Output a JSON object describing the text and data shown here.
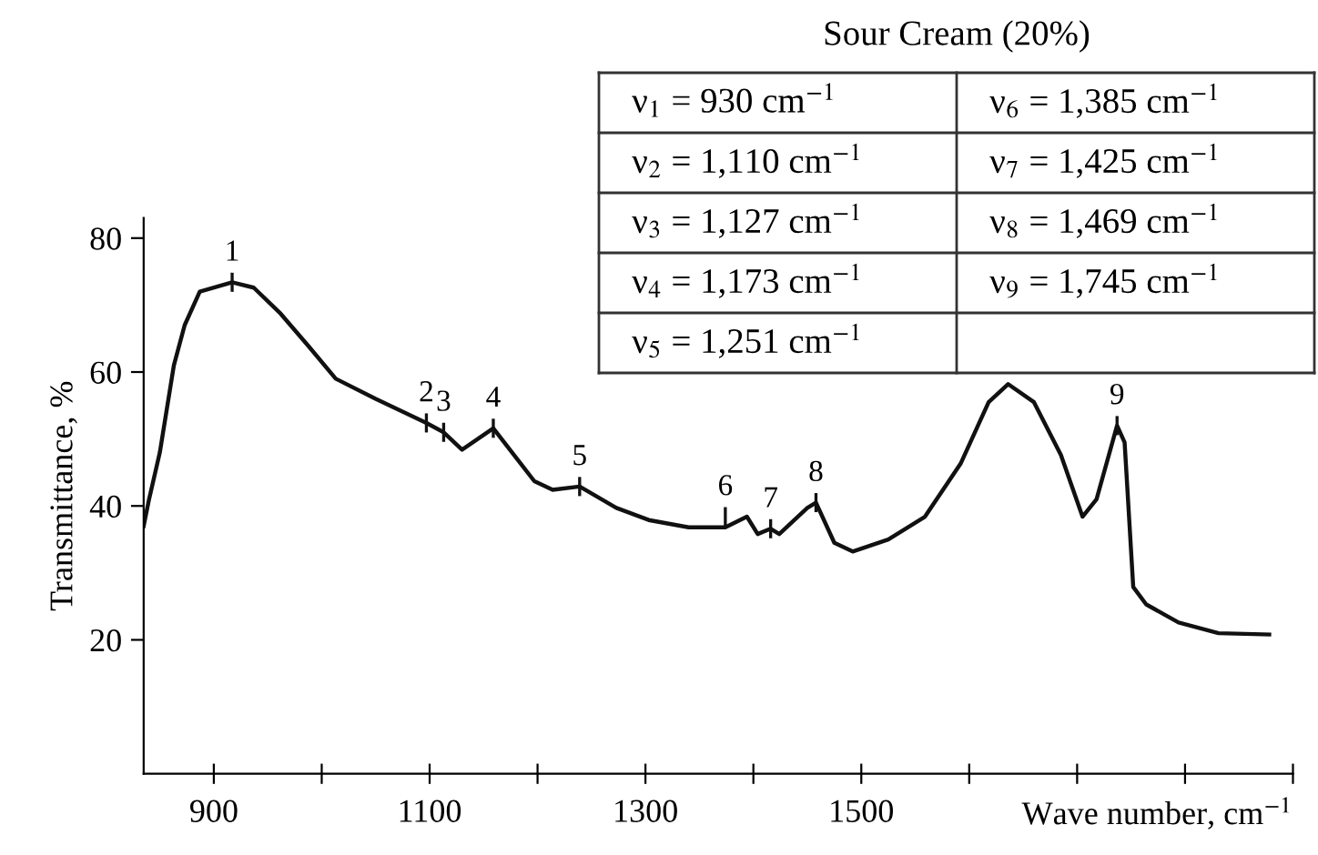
{
  "chart_data": {
    "type": "line",
    "title": "Sour Cream (20%)",
    "xlabel": "Wave number, cm$^{−1}$",
    "ylabel": "Transmittance, %",
    "x": [
      835,
      840,
      850,
      856,
      863,
      873,
      887,
      917,
      937,
      962,
      987,
      1013,
      1050,
      1097,
      1113,
      1130,
      1159,
      1197,
      1214,
      1239,
      1273,
      1303,
      1340,
      1374,
      1394,
      1404,
      1416,
      1424,
      1450,
      1458,
      1475,
      1492,
      1525,
      1559,
      1592,
      1618,
      1636,
      1660,
      1685,
      1705,
      1718,
      1737,
      1744,
      1752,
      1764,
      1794,
      1831,
      1878
    ],
    "series": [
      {
        "color": "#111111",
        "values": [
          37,
          41,
          48,
          54,
          61,
          67,
          72,
          73.4,
          72.6,
          68.7,
          64,
          59,
          56,
          52.4,
          51,
          48.4,
          51.6,
          43.7,
          42.4,
          42.9,
          39.7,
          37.9,
          36.8,
          36.8,
          38.4,
          35.8,
          36.6,
          35.8,
          39.7,
          40.5,
          34.5,
          33.2,
          35,
          38.4,
          46.3,
          55.5,
          58.2,
          55.5,
          47.6,
          38.4,
          41,
          52,
          49.5,
          27.9,
          25.3,
          22.6,
          21,
          20.8
        ]
      }
    ],
    "xlim": [
      835,
      1900
    ],
    "ylim": [
      0,
      83
    ],
    "xticks": [
      900,
      {
        "value": 1000,
        "label": null
      },
      1100,
      {
        "value": 1200,
        "label": null
      },
      1300,
      {
        "value": 1400,
        "label": null
      },
      1500,
      {
        "value": 1600,
        "label": null
      },
      {
        "value": 1700,
        "label": null
      },
      {
        "value": 1800,
        "label": null
      },
      {
        "value": 1900,
        "label": null
      }
    ],
    "yticks": [
      20,
      40,
      60,
      80
    ],
    "grid": false,
    "legend": false,
    "marker": "none",
    "line_style": "solid",
    "annotations": [
      {
        "text": "1",
        "x": 917,
        "y": 73.4
      },
      {
        "text": "2",
        "x": 1097,
        "y": 52.4
      },
      {
        "text": "3",
        "x": 1113,
        "y": 51
      },
      {
        "text": "4",
        "x": 1159,
        "y": 51.6
      },
      {
        "text": "5",
        "x": 1239,
        "y": 42.9
      },
      {
        "text": "6",
        "x": 1374,
        "y": 38.4
      },
      {
        "text": "7",
        "x": 1416,
        "y": 36.6
      },
      {
        "text": "8",
        "x": 1458,
        "y": 40.5
      },
      {
        "text": "9",
        "x": 1737,
        "y": 52
      },
      "ν$_{1}$ = 930 cm$^{−1}$",
      "ν$_{2}$ = 1,110 cm$^{−1}$",
      "ν$_{3}$ = 1,127 cm$^{−1}$",
      "ν$_{4}$ = 1,173 cm$^{−1}$",
      "ν$_{5}$ = 1,251 cm$^{−1}$",
      "ν$_{6}$ = 1,385 cm$^{−1}$",
      "ν$_{7}$ = 1,425 cm$^{−1}$",
      "ν$_{8}$ = 1,469 cm$^{−1}$",
      "ν$_{9}$ = 1,745 cm$^{−1}$"
    ]
  }
}
